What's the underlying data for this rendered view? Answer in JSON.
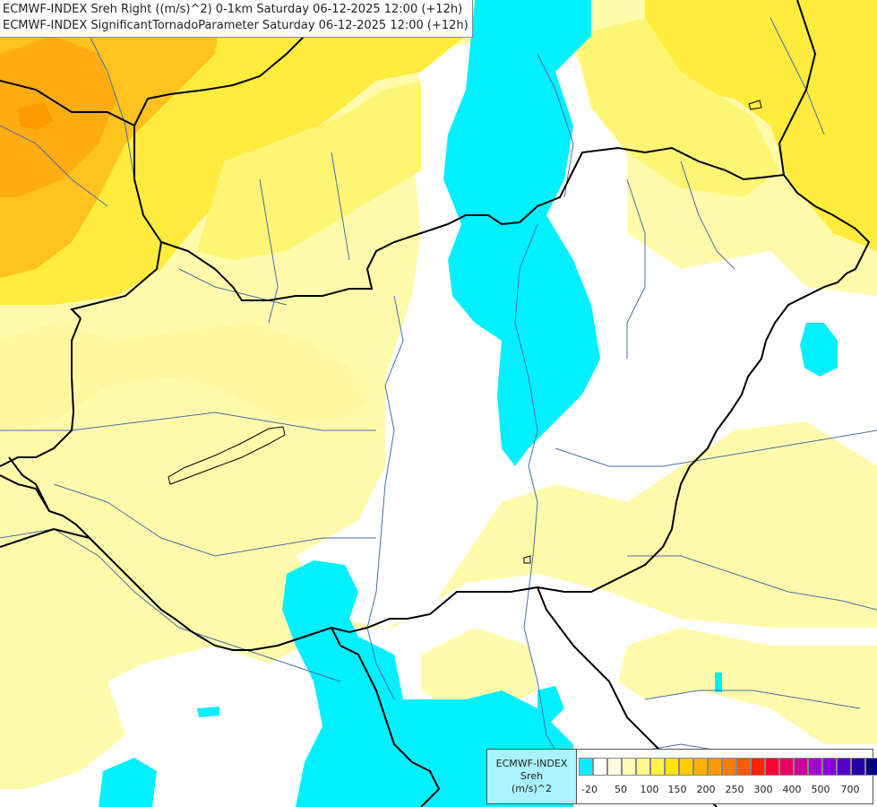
{
  "title": {
    "line1": "ECMWF-INDEX Sreh Right ((m/s)^2) 0-1km Saturday 06-12-2025 12:00 (+12h)",
    "line2": "ECMWF-INDEX SignificantTornadoParameter Saturday 06-12-2025 12:00 (+12h)"
  },
  "legend": {
    "line1": "ECMWF-INDEX",
    "line2": "Sreh",
    "line3": "(m/s)^2",
    "colors": [
      "#00eeff",
      "#ffffff",
      "#fffde0",
      "#fffbb8",
      "#fff78a",
      "#fff24a",
      "#ffe600",
      "#ffcc00",
      "#ffb000",
      "#ff9900",
      "#ff7b00",
      "#ff5a00",
      "#ff2200",
      "#ff0033",
      "#e60066",
      "#cc0099",
      "#aa00cc",
      "#8800dd",
      "#5500cc",
      "#2200aa",
      "#000080"
    ],
    "ticks": [
      "-20",
      "50",
      "100",
      "150",
      "200",
      "250",
      "300",
      "400",
      "500",
      "700"
    ]
  },
  "map": {
    "fill_colors": {
      "orange": "#ffc21e",
      "dark_orange": "#ffac12",
      "yellow": "#ffe628",
      "light_yellow": "#fffbab",
      "pale_yellow": "#ffffd0",
      "cyan": "#00f0ff",
      "white": "#ffffff"
    },
    "border_color": "#000000",
    "river_color": "#4a6ea8"
  }
}
